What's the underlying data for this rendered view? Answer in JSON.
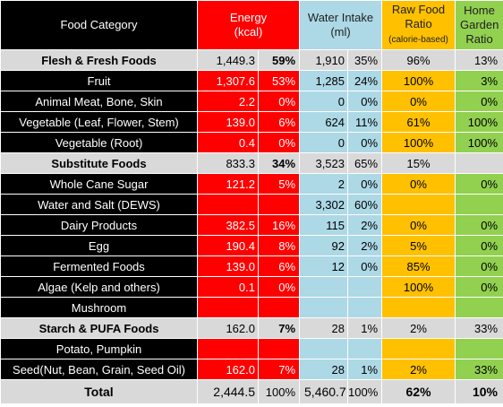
{
  "header": {
    "category": "Food Category",
    "energy_line1": "Energy",
    "energy_line2": "(kcal)",
    "water_line1": "Water Intake",
    "water_line2": "(ml)",
    "raw_line1": "Raw Food",
    "raw_line2": "Ratio",
    "raw_line3": "(calorie-based)",
    "garden_line1": "Home",
    "garden_line2": "Garden",
    "garden_line3": "Ratio"
  },
  "rows": [
    {
      "type": "section",
      "name": "Flesh & Fresh Foods",
      "energy": "1,449.3",
      "energy_pct": "59%",
      "water": "1,910",
      "water_pct": "35%",
      "raw": "96%",
      "garden": "13%"
    },
    {
      "type": "item",
      "name": "Fruit",
      "energy": "1,307.6",
      "energy_pct": "53%",
      "water": "1,285",
      "water_pct": "24%",
      "raw": "100%",
      "garden": "3%"
    },
    {
      "type": "item",
      "name": "Animal Meat, Bone, Skin",
      "energy": "2.2",
      "energy_pct": "0%",
      "water": "0",
      "water_pct": "0%",
      "raw": "0%",
      "garden": "0%"
    },
    {
      "type": "item",
      "name": "Vegetable (Leaf, Flower, Stem)",
      "energy": "139.0",
      "energy_pct": "6%",
      "water": "624",
      "water_pct": "11%",
      "raw": "61%",
      "garden": "100%"
    },
    {
      "type": "item",
      "name": "Vegetable (Root)",
      "energy": "0.4",
      "energy_pct": "0%",
      "water": "0",
      "water_pct": "0%",
      "raw": "100%",
      "garden": "100%"
    },
    {
      "type": "section",
      "name": "Substitute Foods",
      "energy": "833.3",
      "energy_pct": "34%",
      "water": "3,523",
      "water_pct": "65%",
      "raw": "15%",
      "garden": ""
    },
    {
      "type": "item",
      "name": "Whole Cane Sugar",
      "energy": "121.2",
      "energy_pct": "5%",
      "water": "2",
      "water_pct": "0%",
      "raw": "0%",
      "garden": "0%"
    },
    {
      "type": "item",
      "name": "Water and Salt (DEWS)",
      "energy": "",
      "energy_pct": "",
      "water": "3,302",
      "water_pct": "60%",
      "raw": "",
      "garden": ""
    },
    {
      "type": "item",
      "name": "Dairy Products",
      "energy": "382.5",
      "energy_pct": "16%",
      "water": "115",
      "water_pct": "2%",
      "raw": "0%",
      "garden": "0%"
    },
    {
      "type": "item",
      "name": "Egg",
      "energy": "190.4",
      "energy_pct": "8%",
      "water": "92",
      "water_pct": "2%",
      "raw": "5%",
      "garden": "0%"
    },
    {
      "type": "item",
      "name": "Fermented Foods",
      "energy": "139.0",
      "energy_pct": "6%",
      "water": "12",
      "water_pct": "0%",
      "raw": "85%",
      "garden": "0%"
    },
    {
      "type": "item",
      "name": "Algae (Kelp and others)",
      "energy": "0.1",
      "energy_pct": "0%",
      "water": "",
      "water_pct": "",
      "raw": "100%",
      "garden": "0%"
    },
    {
      "type": "item",
      "name": "Mushroom",
      "energy": "",
      "energy_pct": "",
      "water": "",
      "water_pct": "",
      "raw": "",
      "garden": ""
    },
    {
      "type": "section",
      "name": "Starch & PUFA Foods",
      "energy": "162.0",
      "energy_pct": "7%",
      "water": "28",
      "water_pct": "1%",
      "raw": "2%",
      "garden": "33%"
    },
    {
      "type": "item",
      "name": "Potato, Pumpkin",
      "energy": "",
      "energy_pct": "",
      "water": "",
      "water_pct": "",
      "raw": "",
      "garden": ""
    },
    {
      "type": "item",
      "name": "Seed(Nut, Bean, Grain, Seed Oil)",
      "energy": "162.0",
      "energy_pct": "7%",
      "water": "28",
      "water_pct": "1%",
      "raw": "2%",
      "garden": "33%"
    }
  ],
  "total": {
    "name": "Total",
    "energy": "2,444.5",
    "energy_pct": "100%",
    "water": "5,460.7",
    "water_pct": "100%",
    "raw": "62%",
    "garden": "10%"
  }
}
